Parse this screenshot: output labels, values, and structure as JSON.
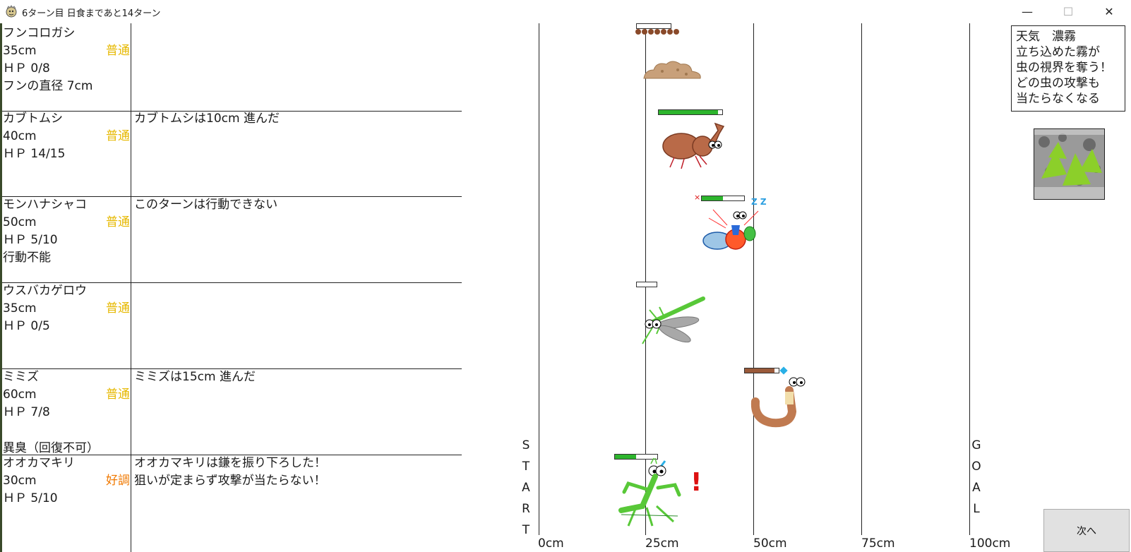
{
  "window": {
    "title": "6ターン目 日食まであと14ターン",
    "icon": "sun-eclipse-icon",
    "minimize_glyph": "—",
    "maximize_glyph": "☐",
    "close_glyph": "✕"
  },
  "insects": [
    {
      "name": "フンコロガシ",
      "distance": "35cm",
      "condition": "普通",
      "hp": "ＨＰ 0/8",
      "extra": "フンの直径 7cm",
      "log": [],
      "hp_fraction": 0.0,
      "position_cm": 25,
      "dung_count": 7
    },
    {
      "name": "カブトムシ",
      "distance": "40cm",
      "condition": "普通",
      "hp": "ＨＰ 14/15",
      "extra": "",
      "log": [
        "カブトムシは10cm 進んだ"
      ],
      "hp_fraction": 0.93,
      "position_cm": 25
    },
    {
      "name": "モンハナシャコ",
      "distance": "50cm",
      "condition": "普通",
      "hp": "ＨＰ 5/10",
      "extra": "行動不能",
      "log": [
        "このターンは行動できない"
      ],
      "hp_fraction": 0.5,
      "position_cm": 50,
      "status_marks": [
        "×",
        "Z Z"
      ]
    },
    {
      "name": "ウスバカゲロウ",
      "distance": "35cm",
      "condition": "普通",
      "hp": "ＨＰ 0/5",
      "extra": "",
      "log": [],
      "hp_fraction": 0.0,
      "position_cm": 25
    },
    {
      "name": "ミミズ",
      "distance": "60cm",
      "condition": "普通",
      "hp": "ＨＰ 7/8",
      "extra": "異臭（回復不可）",
      "log": [
        "ミミズは15cm 進んだ"
      ],
      "hp_fraction": 0.875,
      "position_cm": 50
    },
    {
      "name": "オオカマキリ",
      "distance": "30cm",
      "condition": "好調",
      "hp": "ＨＰ 5/10",
      "extra": "",
      "log": [
        "オオカマキリは鎌を振り下ろした！",
        "狙いが定まらず攻撃が当たらない！"
      ],
      "hp_fraction": 0.5,
      "position_cm": 25,
      "alert_mark": "!"
    }
  ],
  "track": {
    "start_letters": [
      "S",
      "T",
      "A",
      "R",
      "T"
    ],
    "goal_letters": [
      "G",
      "O",
      "A",
      "L"
    ],
    "ticks": [
      "0cm",
      "25cm",
      "50cm",
      "75cm",
      "100cm"
    ]
  },
  "weather": {
    "title": "天気　濃霧",
    "lines": [
      "立ち込めた霧が",
      "虫の視界を奪う！",
      "どの虫の攻撃も",
      "当たらなくなる"
    ]
  },
  "next_button": "次へ",
  "colors": {
    "condition_normal": "#e6b800",
    "condition_good": "#f07800",
    "hp_green": "#2db52d",
    "hp_brown": "#9a5a3a",
    "alert_red": "#dd1111",
    "zz_blue": "#2a9ee0"
  }
}
